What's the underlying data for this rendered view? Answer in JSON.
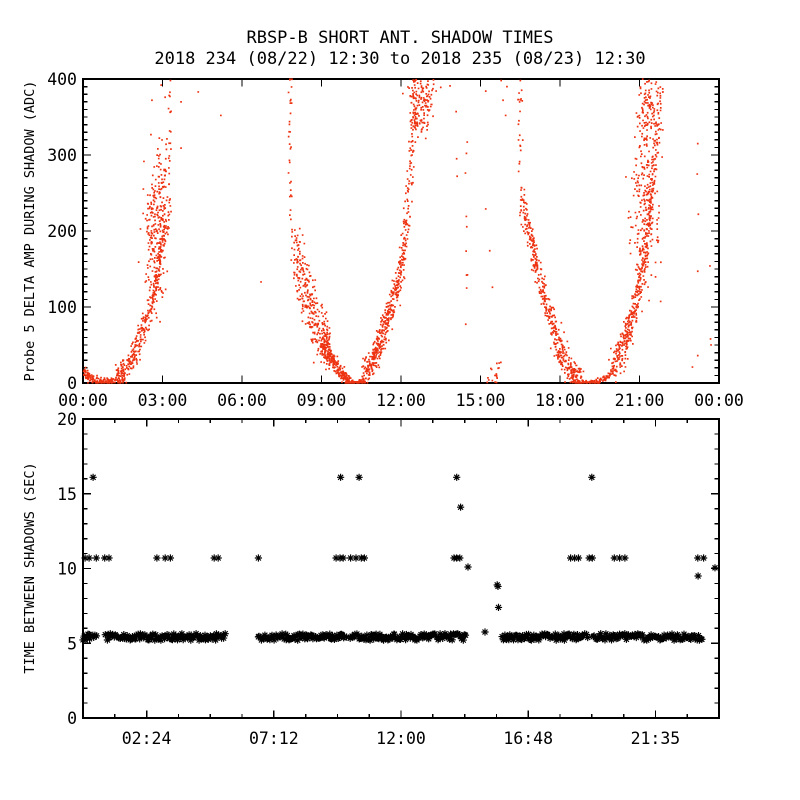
{
  "header": {
    "title": "RBSP-B SHORT ANT. SHADOW TIMES",
    "subtitle": "2018 234 (08/22) 12:30 to 2018 235 (08/23) 12:30"
  },
  "colors": {
    "background": "#ffffff",
    "axis": "#000000",
    "scatter_red": "#ee3312",
    "marker_black": "#000000"
  },
  "chart_data": [
    {
      "type": "scatter",
      "panel": "top",
      "title": "RBSP-B SHORT ANT. SHADOW TIMES",
      "subtitle": "2018 234 (08/22) 12:30 to 2018 235 (08/23) 12:30",
      "xlabel": "",
      "ylabel": "Probe 5 DELTA AMP DURING SHADOW (ADC)",
      "xlim": [
        0,
        24
      ],
      "ylim": [
        0,
        400
      ],
      "grid": false,
      "x_ticks": {
        "positions": [
          0,
          3,
          6,
          9,
          12,
          15,
          18,
          21,
          24
        ],
        "labels": [
          "00:00",
          "03:00",
          "06:00",
          "09:00",
          "12:00",
          "15:00",
          "18:00",
          "21:00",
          "00:00"
        ]
      },
      "x_minor_step": null,
      "y_ticks": {
        "positions": [
          0,
          100,
          200,
          300,
          400
        ],
        "labels": [
          "0",
          "100",
          "200",
          "300",
          "400"
        ]
      },
      "y_minor_step": 10,
      "marker": {
        "shape": "dot",
        "color": "#ee3312",
        "size": 1.7
      },
      "description": "Delta amplitude spikes forming three shadow-entry/exit V-shapes per day, minima near 01:00, 10:15 and 19:15, plumes rising to 400 ADC near 03:00, 12:30 and 21:30",
      "features": [
        {
          "kind": "curve",
          "pts": [
            [
              0.02,
              16
            ],
            [
              0.25,
              7
            ],
            [
              0.55,
              2
            ],
            [
              0.9,
              0
            ],
            [
              1.2,
              2
            ]
          ],
          "sx": 0.04,
          "sy": 3,
          "n": 140
        },
        {
          "kind": "curve",
          "pts": [
            [
              1.25,
              4
            ],
            [
              1.6,
              16
            ],
            [
              1.95,
              40
            ],
            [
              2.3,
              72
            ],
            [
              2.55,
              100
            ],
            [
              2.8,
              140
            ],
            [
              3.0,
              180
            ],
            [
              3.1,
              205
            ]
          ],
          "sx": 0.05,
          "sy": 9,
          "n": 330
        },
        {
          "kind": "blob",
          "cx": 2.72,
          "cy": 198,
          "sx": 0.22,
          "sy": 48,
          "n": 210
        },
        {
          "kind": "blob",
          "cx": 2.95,
          "cy": 262,
          "sx": 0.12,
          "sy": 30,
          "n": 60
        },
        {
          "kind": "vline",
          "x": 3.27,
          "v0": 200,
          "v1": 400,
          "sx": 0.03,
          "n": 26
        },
        {
          "kind": "dots",
          "pts": [
            [
              3.7,
              370
            ],
            [
              3.7,
              309
            ],
            [
              4.35,
              383
            ],
            [
              3.3,
              398
            ],
            [
              2.95,
              392
            ],
            [
              3.1,
              376
            ],
            [
              2.6,
              372
            ],
            [
              6.72,
              133
            ],
            [
              5.2,
              352
            ]
          ]
        },
        {
          "kind": "vline",
          "x": 7.82,
          "v0": 200,
          "v1": 400,
          "sx": 0.035,
          "n": 30
        },
        {
          "kind": "curve",
          "pts": [
            [
              7.95,
              190
            ],
            [
              8.25,
              140
            ],
            [
              8.55,
              100
            ],
            [
              8.85,
              65
            ],
            [
              9.1,
              50
            ]
          ],
          "sx": 0.12,
          "sy": 20,
          "n": 260
        },
        {
          "kind": "blob",
          "cx": 9.15,
          "cy": 52,
          "sx": 0.09,
          "sy": 12,
          "n": 80
        },
        {
          "kind": "curve",
          "pts": [
            [
              9.15,
              45
            ],
            [
              9.5,
              25
            ],
            [
              9.8,
              10
            ],
            [
              10.05,
              2
            ]
          ],
          "sx": 0.05,
          "sy": 5,
          "n": 190
        },
        {
          "kind": "curve",
          "pts": [
            [
              10.0,
              1
            ],
            [
              10.35,
              0
            ],
            [
              10.6,
              2
            ]
          ],
          "sx": 0.05,
          "sy": 1.5,
          "n": 80
        },
        {
          "kind": "curve",
          "pts": [
            [
              10.55,
              8
            ],
            [
              10.9,
              26
            ],
            [
              11.25,
              55
            ],
            [
              11.55,
              90
            ],
            [
              11.85,
              128
            ],
            [
              12.0,
              150
            ],
            [
              12.2,
              210
            ],
            [
              12.35,
              270
            ],
            [
              12.45,
              330
            ],
            [
              12.55,
              378
            ]
          ],
          "sx": 0.06,
          "sy": 11,
          "n": 480
        },
        {
          "kind": "blob",
          "cx": 12.7,
          "cy": 372,
          "sx": 0.25,
          "sy": 24,
          "n": 170
        },
        {
          "kind": "vline",
          "x": 14.47,
          "v0": 40,
          "v1": 330,
          "sx": 0.02,
          "n": 9
        },
        {
          "kind": "dots",
          "pts": [
            [
              13.5,
              389
            ],
            [
              13.85,
              391
            ],
            [
              14.08,
              357
            ],
            [
              14.1,
              295
            ],
            [
              14.12,
              272
            ],
            [
              14.5,
              317
            ],
            [
              15.2,
              384
            ],
            [
              15.2,
              229
            ],
            [
              15.35,
              174
            ],
            [
              15.45,
              126
            ]
          ]
        },
        {
          "kind": "curve",
          "pts": [
            [
              15.25,
              12
            ],
            [
              15.45,
              6
            ],
            [
              15.65,
              16
            ],
            [
              15.7,
              28
            ]
          ],
          "sx": 0.06,
          "sy": 7,
          "n": 18
        },
        {
          "kind": "dots",
          "pts": [
            [
              15.78,
              398
            ],
            [
              15.85,
              372
            ],
            [
              15.95,
              352
            ],
            [
              16.0,
              390
            ]
          ]
        },
        {
          "kind": "vline",
          "x": 16.5,
          "v0": 250,
          "v1": 400,
          "sx": 0.04,
          "n": 22
        },
        {
          "kind": "curve",
          "pts": [
            [
              16.55,
              240
            ],
            [
              16.9,
              190
            ],
            [
              17.3,
              130
            ],
            [
              17.6,
              90
            ],
            [
              17.9,
              55
            ],
            [
              18.2,
              30
            ],
            [
              18.5,
              10
            ],
            [
              18.8,
              2
            ]
          ],
          "sx": 0.06,
          "sy": 11,
          "n": 430
        },
        {
          "kind": "curve",
          "pts": [
            [
              18.6,
              1
            ],
            [
              19.0,
              0
            ],
            [
              19.4,
              1
            ],
            [
              19.8,
              8
            ],
            [
              20.0,
              15
            ]
          ],
          "sx": 0.06,
          "sy": 2,
          "n": 120
        },
        {
          "kind": "curve",
          "pts": [
            [
              20.0,
              18
            ],
            [
              20.3,
              40
            ],
            [
              20.6,
              70
            ],
            [
              20.9,
              110
            ],
            [
              21.15,
              160
            ],
            [
              21.35,
              215
            ],
            [
              21.55,
              280
            ],
            [
              21.7,
              345
            ],
            [
              21.8,
              390
            ]
          ],
          "sx": 0.07,
          "sy": 12,
          "n": 430
        },
        {
          "kind": "blob",
          "cx": 21.15,
          "cy": 225,
          "sx": 0.28,
          "sy": 55,
          "n": 180
        },
        {
          "kind": "blob",
          "cx": 21.35,
          "cy": 360,
          "sx": 0.22,
          "sy": 28,
          "n": 120
        },
        {
          "kind": "dots",
          "pts": [
            [
              23.2,
              315
            ],
            [
              23.18,
              275
            ],
            [
              23.22,
              222
            ],
            [
              23.66,
              154
            ],
            [
              23.2,
              147
            ],
            [
              23.68,
              58
            ],
            [
              23.7,
              50
            ],
            [
              23.2,
              36
            ],
            [
              23.0,
              21
            ]
          ]
        }
      ]
    },
    {
      "type": "scatter",
      "panel": "bottom",
      "title": "",
      "xlabel": "",
      "ylabel": "TIME BETWEEN SHADOWS (SEC)",
      "xlim": [
        0,
        24
      ],
      "ylim": [
        0,
        20
      ],
      "grid": false,
      "x_ticks": {
        "positions": [
          2.4,
          7.2,
          12,
          16.8,
          21.6
        ],
        "labels": [
          "02:24",
          "07:12",
          "12:00",
          "16:48",
          "21:35"
        ]
      },
      "x_minor_step": 1.2,
      "y_ticks": {
        "positions": [
          0,
          5,
          10,
          15,
          20
        ],
        "labels": [
          "0",
          "5",
          "10",
          "15",
          "20"
        ]
      },
      "y_minor_step": 1,
      "marker": {
        "shape": "asterisk",
        "color": "#000000",
        "radius": 3.6
      },
      "description": "Time between shadows: dense band near 5.4 s with gaps, rows of points near 10.7 s and 16 s, one at 14 s, stragglers 5.7-10.1 s near 15h and 23-24h",
      "features": [
        {
          "kind": "band",
          "value": 5.42,
          "jitter": 0.22,
          "step": 0.045,
          "segments": [
            [
              0.0,
              0.53
            ],
            [
              0.86,
              5.36
            ],
            [
              6.6,
              9.93
            ],
            [
              10.1,
              14.45
            ],
            [
              15.8,
              19.06
            ],
            [
              19.25,
              23.35
            ]
          ]
        },
        {
          "kind": "row",
          "value": 10.7,
          "x": [
            0.08,
            0.23,
            0.5,
            0.82,
            0.98,
            2.79,
            3.1,
            3.3,
            4.95,
            5.1,
            6.62,
            9.55,
            9.7,
            9.82,
            10.1,
            10.3,
            10.5,
            10.62,
            14.0,
            14.1,
            14.22,
            18.4,
            18.55,
            18.7,
            19.1,
            19.22,
            20.05,
            20.25,
            20.45,
            23.2,
            23.42
          ]
        },
        {
          "kind": "row",
          "value": 16.1,
          "x": [
            0.38,
            9.72,
            10.42,
            14.1,
            19.2
          ]
        },
        {
          "kind": "points",
          "pts": [
            [
              14.25,
              14.1
            ],
            [
              14.53,
              10.1
            ],
            [
              15.17,
              5.75
            ],
            [
              15.63,
              8.9
            ],
            [
              15.66,
              8.8
            ],
            [
              15.68,
              7.4
            ],
            [
              23.21,
              9.5
            ],
            [
              23.85,
              10.05
            ]
          ]
        }
      ]
    }
  ]
}
